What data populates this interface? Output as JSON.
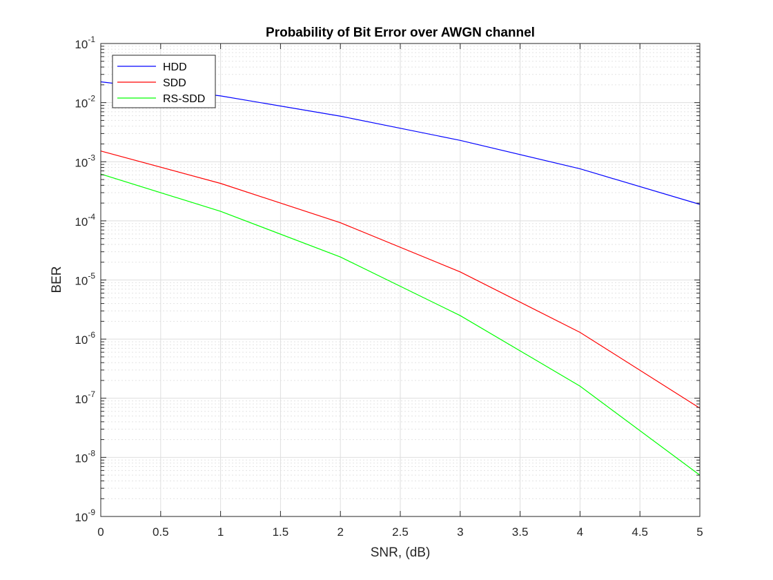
{
  "chart_data": {
    "type": "line",
    "title": "Probability of Bit Error over AWGN channel",
    "xlabel": "SNR, (dB)",
    "ylabel": "BER",
    "xlim": [
      0,
      5
    ],
    "ylim": [
      1e-09,
      0.1
    ],
    "yscale": "log",
    "grid": true,
    "minor_grid": true,
    "legend_position": "top-left",
    "x_ticks": [
      "0",
      "0.5",
      "1",
      "1.5",
      "2",
      "2.5",
      "3",
      "3.5",
      "4",
      "4.5",
      "5"
    ],
    "y_ticks": [
      {
        "base": "10",
        "exp": "-9"
      },
      {
        "base": "10",
        "exp": "-8"
      },
      {
        "base": "10",
        "exp": "-7"
      },
      {
        "base": "10",
        "exp": "-6"
      },
      {
        "base": "10",
        "exp": "-5"
      },
      {
        "base": "10",
        "exp": "-4"
      },
      {
        "base": "10",
        "exp": "-3"
      },
      {
        "base": "10",
        "exp": "-2"
      },
      {
        "base": "10",
        "exp": "-1"
      }
    ],
    "x": [
      0,
      1,
      2,
      3,
      4,
      5
    ],
    "series": [
      {
        "name": "HDD",
        "color": "#0000ff",
        "values": [
          0.0225,
          0.013,
          0.0059,
          0.0023,
          0.00076,
          0.00019
        ]
      },
      {
        "name": "SDD",
        "color": "#ff0000",
        "values": [
          0.00152,
          0.00043,
          9.3e-05,
          1.37e-05,
          1.3e-06,
          6.8e-08
        ]
      },
      {
        "name": "RS-SDD",
        "color": "#00ff00",
        "values": [
          0.00062,
          0.000145,
          2.45e-05,
          2.5e-06,
          1.6e-07,
          5e-09
        ]
      }
    ]
  }
}
